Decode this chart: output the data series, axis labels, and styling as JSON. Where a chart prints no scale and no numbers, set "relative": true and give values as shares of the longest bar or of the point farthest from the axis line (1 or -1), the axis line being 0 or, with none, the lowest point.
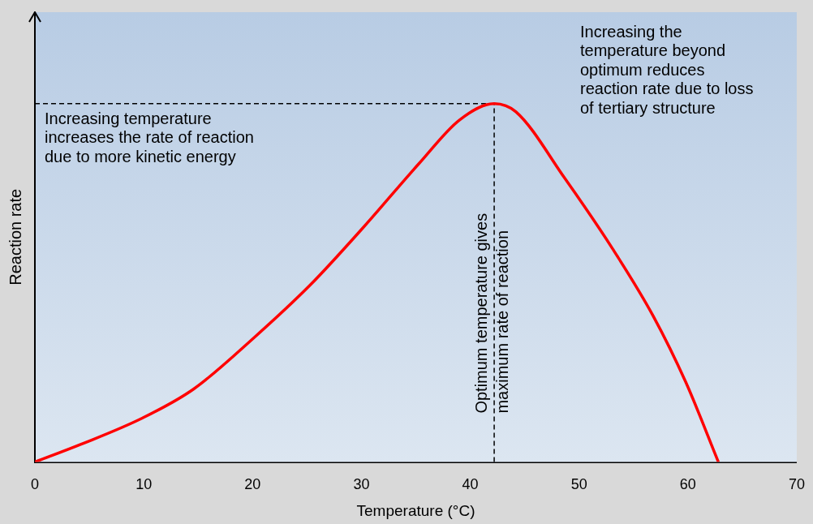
{
  "chart_data": {
    "type": "line",
    "relative": true,
    "xlabel": "Temperature (°C)",
    "ylabel": "Reaction rate",
    "xlim": [
      0,
      70
    ],
    "xticks": [
      0,
      10,
      20,
      30,
      40,
      50,
      60,
      70
    ],
    "grid": false,
    "legend": false,
    "marker": "none",
    "line_style": "solid",
    "series": [
      {
        "color": "#ff0000",
        "x": [
          0,
          4.2,
          9.9,
          14.6,
          20.1,
          25.3,
          30.1,
          35.3,
          39.0,
          42.2,
          44.2,
          48.7,
          53.1,
          56.8,
          59.8,
          62.8
        ],
        "values": [
          0,
          0.049,
          0.123,
          0.204,
          0.346,
          0.494,
          0.652,
          0.833,
          0.954,
          1,
          0.977,
          0.791,
          0.594,
          0.408,
          0.223,
          0
        ]
      }
    ],
    "ref_lines": [
      {
        "axis": "x",
        "value": 42.2,
        "label": "Optimum temperature gives maximum rate of reaction",
        "line_style": "dashed",
        "color": "#000000"
      },
      {
        "axis": "y",
        "value": 1,
        "line_style": "dashed",
        "color": "#000000"
      }
    ],
    "annotations": [
      "Increasing temperature increases the rate of reaction due to more kinetic energy",
      "Increasing the temperature beyond optimum reduces reaction rate due to loss of tertiary structure"
    ]
  }
}
